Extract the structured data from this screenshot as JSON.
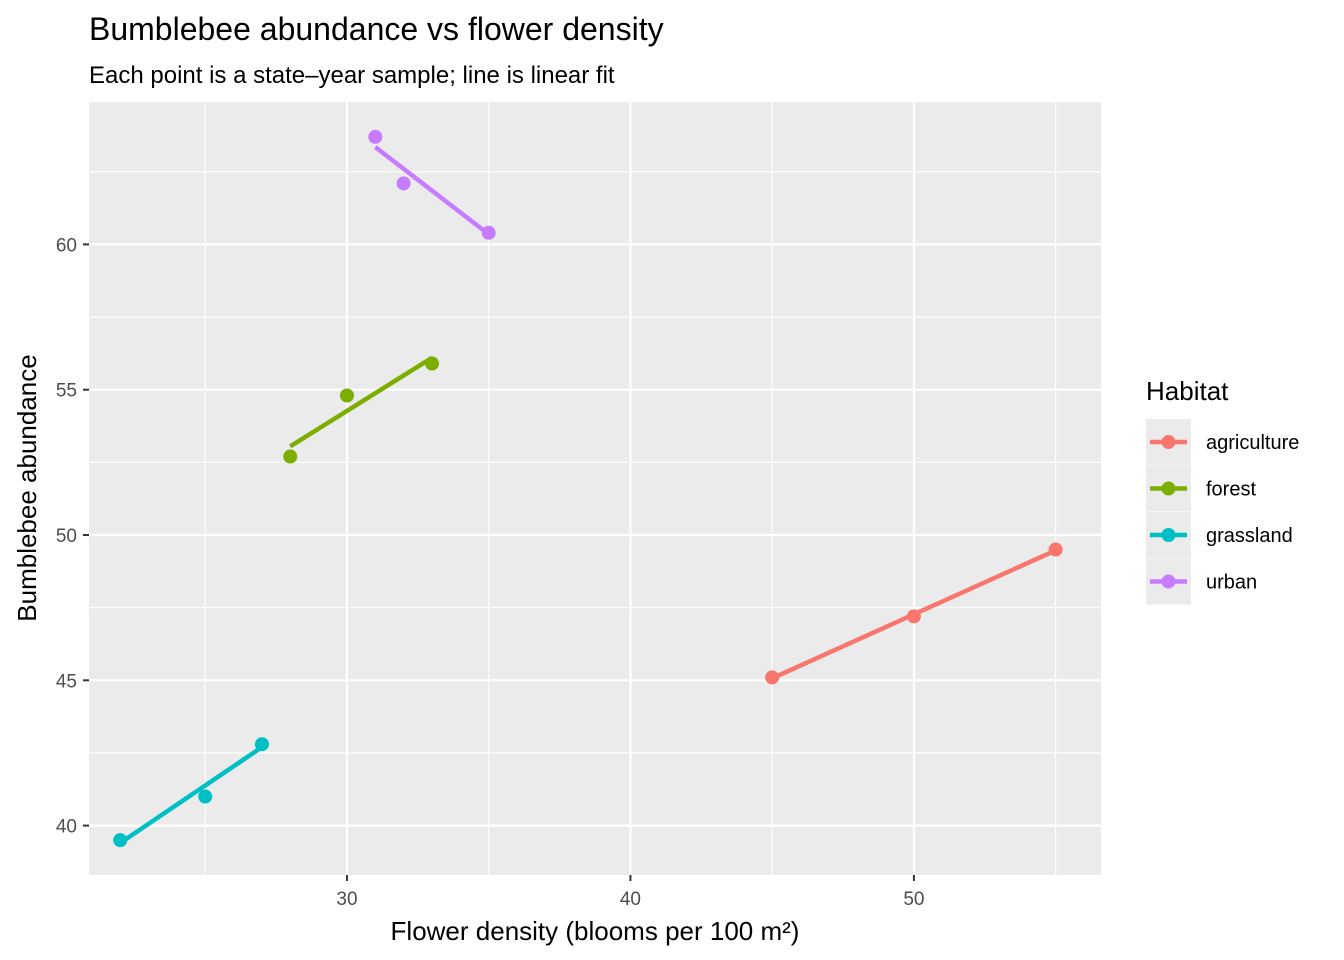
{
  "chart_data": {
    "type": "scatter",
    "title": "Bumblebee abundance vs flower density",
    "subtitle": "Each point is a state–year sample; line is linear fit",
    "xlabel": "Flower density (blooms per 100 m²)",
    "ylabel": "Bumblebee abundance",
    "xlim": [
      20.9,
      56.6
    ],
    "ylim": [
      38.3,
      64.9
    ],
    "x_ticks": [
      30,
      40,
      50
    ],
    "y_ticks": [
      40,
      45,
      50,
      55,
      60
    ],
    "grid": true,
    "legend": {
      "title": "Habitat",
      "position": "right"
    },
    "series": [
      {
        "name": "agriculture",
        "color": "#F8766D",
        "points": [
          {
            "x": 45,
            "y": 45.1
          },
          {
            "x": 50,
            "y": 47.2
          },
          {
            "x": 55,
            "y": 49.5
          }
        ],
        "fit": [
          {
            "x": 45,
            "y": 45.07
          },
          {
            "x": 55,
            "y": 49.47
          }
        ]
      },
      {
        "name": "forest",
        "color": "#7CAE00",
        "points": [
          {
            "x": 28,
            "y": 52.7
          },
          {
            "x": 30,
            "y": 54.8
          },
          {
            "x": 33,
            "y": 55.9
          }
        ],
        "fit": [
          {
            "x": 28,
            "y": 53.05
          },
          {
            "x": 33,
            "y": 56.1
          }
        ]
      },
      {
        "name": "grassland",
        "color": "#00BFC4",
        "points": [
          {
            "x": 22,
            "y": 39.5
          },
          {
            "x": 25,
            "y": 41.0
          },
          {
            "x": 27,
            "y": 42.8
          }
        ],
        "fit": [
          {
            "x": 22,
            "y": 39.4
          },
          {
            "x": 27,
            "y": 42.7
          }
        ]
      },
      {
        "name": "urban",
        "color": "#C77CFF",
        "points": [
          {
            "x": 31,
            "y": 63.7
          },
          {
            "x": 32,
            "y": 62.1
          },
          {
            "x": 35,
            "y": 60.4
          }
        ],
        "fit": [
          {
            "x": 31,
            "y": 63.35
          },
          {
            "x": 35,
            "y": 60.35
          }
        ]
      }
    ]
  }
}
